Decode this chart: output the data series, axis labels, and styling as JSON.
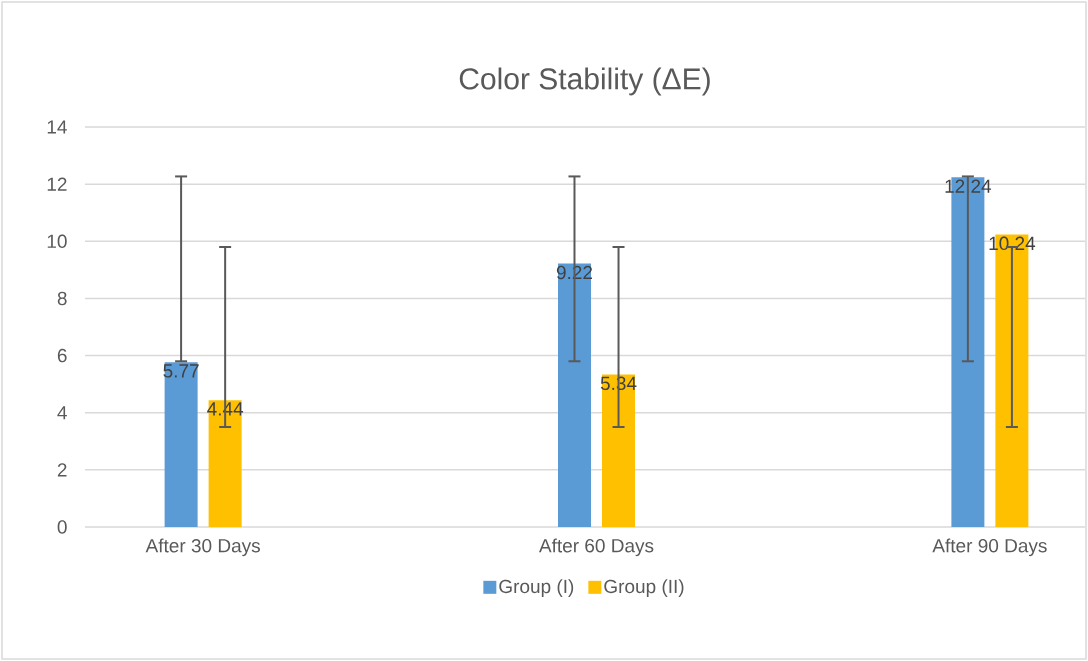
{
  "chart_data": {
    "type": "bar",
    "title": "Color Stability (ΔE)",
    "categories": [
      "After 30 Days",
      "After 60 Days",
      "After 90 Days"
    ],
    "series": [
      {
        "name": "Group (I)",
        "color": "#5b9bd5",
        "values": [
          5.77,
          9.22,
          12.24
        ],
        "errors": [
          [
            5.8,
            12.27
          ],
          [
            5.8,
            12.27
          ],
          [
            5.8,
            12.27
          ]
        ]
      },
      {
        "name": "Group (II)",
        "color": "#ffc000",
        "values": [
          4.44,
          5.34,
          10.24
        ],
        "errors": [
          [
            3.5,
            9.8
          ],
          [
            3.5,
            9.8
          ],
          [
            3.5,
            9.8
          ]
        ]
      }
    ],
    "ylim": [
      0,
      14
    ],
    "yticks": [
      0,
      2,
      4,
      6,
      8,
      10,
      12,
      14
    ],
    "grid": "y",
    "legend": "bottom",
    "data_labels": true
  }
}
